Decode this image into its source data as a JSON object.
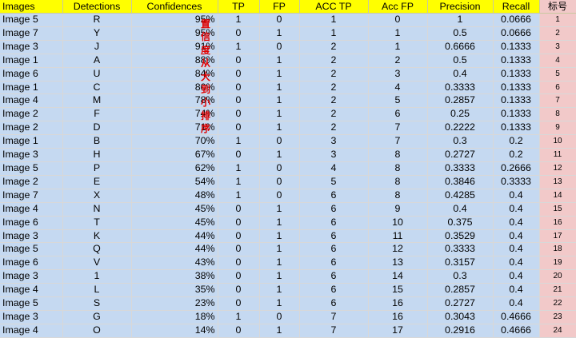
{
  "headers": [
    "Images",
    "Detections",
    "Confidences",
    "TP",
    "FP",
    "ACC TP",
    "Acc FP",
    "Precision",
    "Recall",
    "标号"
  ],
  "annotation": [
    "置",
    "信",
    "度",
    "从",
    "大",
    "到",
    "小",
    "排",
    "序"
  ],
  "rows": [
    [
      "Image 5",
      "R",
      "95%",
      "1",
      "0",
      "1",
      "0",
      "1",
      "0.0666",
      "1"
    ],
    [
      "Image 7",
      "Y",
      "95%",
      "0",
      "1",
      "1",
      "1",
      "0.5",
      "0.0666",
      "2"
    ],
    [
      "Image 3",
      "J",
      "91%",
      "1",
      "0",
      "2",
      "1",
      "0.6666",
      "0.1333",
      "3"
    ],
    [
      "Image 1",
      "A",
      "88%",
      "0",
      "1",
      "2",
      "2",
      "0.5",
      "0.1333",
      "4"
    ],
    [
      "Image 6",
      "U",
      "84%",
      "0",
      "1",
      "2",
      "3",
      "0.4",
      "0.1333",
      "5"
    ],
    [
      "Image 1",
      "C",
      "80%",
      "0",
      "1",
      "2",
      "4",
      "0.3333",
      "0.1333",
      "6"
    ],
    [
      "Image 4",
      "M",
      "78%",
      "0",
      "1",
      "2",
      "5",
      "0.2857",
      "0.1333",
      "7"
    ],
    [
      "Image 2",
      "F",
      "74%",
      "0",
      "1",
      "2",
      "6",
      "0.25",
      "0.1333",
      "8"
    ],
    [
      "Image 2",
      "D",
      "71%",
      "0",
      "1",
      "2",
      "7",
      "0.2222",
      "0.1333",
      "9"
    ],
    [
      "Image 1",
      "B",
      "70%",
      "1",
      "0",
      "3",
      "7",
      "0.3",
      "0.2",
      "10"
    ],
    [
      "Image 3",
      "H",
      "67%",
      "0",
      "1",
      "3",
      "8",
      "0.2727",
      "0.2",
      "11"
    ],
    [
      "Image 5",
      "P",
      "62%",
      "1",
      "0",
      "4",
      "8",
      "0.3333",
      "0.2666",
      "12"
    ],
    [
      "Image 2",
      "E",
      "54%",
      "1",
      "0",
      "5",
      "8",
      "0.3846",
      "0.3333",
      "13"
    ],
    [
      "Image 7",
      "X",
      "48%",
      "1",
      "0",
      "6",
      "8",
      "0.4285",
      "0.4",
      "14"
    ],
    [
      "Image 4",
      "N",
      "45%",
      "0",
      "1",
      "6",
      "9",
      "0.4",
      "0.4",
      "15"
    ],
    [
      "Image 6",
      "T",
      "45%",
      "0",
      "1",
      "6",
      "10",
      "0.375",
      "0.4",
      "16"
    ],
    [
      "Image 3",
      "K",
      "44%",
      "0",
      "1",
      "6",
      "11",
      "0.3529",
      "0.4",
      "17"
    ],
    [
      "Image 5",
      "Q",
      "44%",
      "0",
      "1",
      "6",
      "12",
      "0.3333",
      "0.4",
      "18"
    ],
    [
      "Image 6",
      "V",
      "43%",
      "0",
      "1",
      "6",
      "13",
      "0.3157",
      "0.4",
      "19"
    ],
    [
      "Image 3",
      "1",
      "38%",
      "0",
      "1",
      "6",
      "14",
      "0.3",
      "0.4",
      "20"
    ],
    [
      "Image 4",
      "L",
      "35%",
      "0",
      "1",
      "6",
      "15",
      "0.2857",
      "0.4",
      "21"
    ],
    [
      "Image 5",
      "S",
      "23%",
      "0",
      "1",
      "6",
      "16",
      "0.2727",
      "0.4",
      "22"
    ],
    [
      "Image 3",
      "G",
      "18%",
      "1",
      "0",
      "7",
      "16",
      "0.3043",
      "0.4666",
      "23"
    ],
    [
      "Image 4",
      "O",
      "14%",
      "0",
      "1",
      "7",
      "17",
      "0.2916",
      "0.4666",
      "24"
    ]
  ]
}
